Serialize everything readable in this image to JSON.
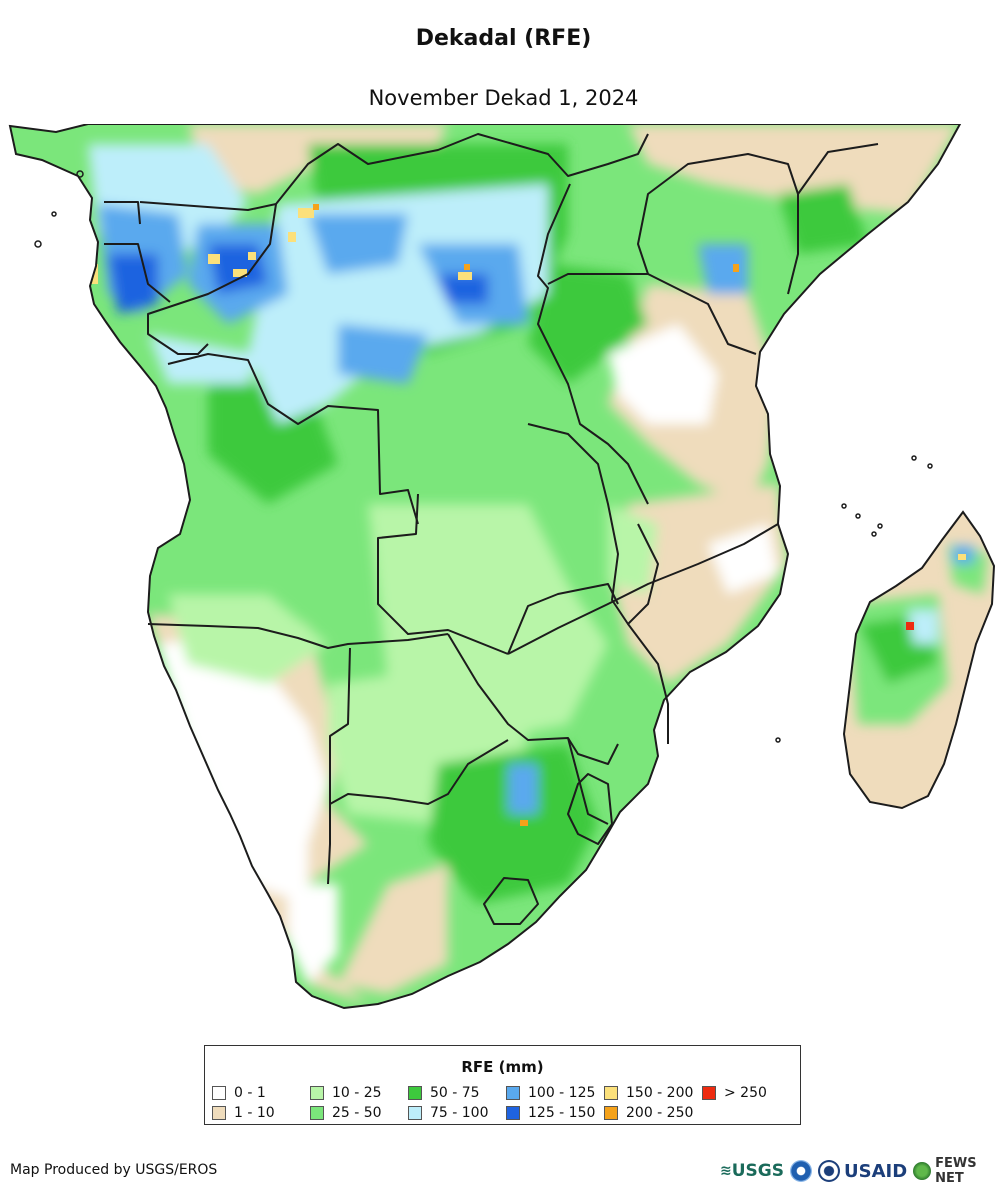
{
  "header": {
    "title": "Dekadal (RFE)",
    "subtitle": "November Dekad 1, 2024"
  },
  "map": {
    "ocean_color": "#ffffff",
    "border_color": "#1c1c1c"
  },
  "legend": {
    "title": "RFE (mm)",
    "classes": [
      {
        "label": "0 - 1",
        "color": "#ffffff"
      },
      {
        "label": "1 - 10",
        "color": "#efdcbc"
      },
      {
        "label": "10 - 25",
        "color": "#b8f5a8"
      },
      {
        "label": "25 - 50",
        "color": "#7be67b"
      },
      {
        "label": "50 - 75",
        "color": "#3dc93d"
      },
      {
        "label": "75 - 100",
        "color": "#bdeefa"
      },
      {
        "label": "100 - 125",
        "color": "#5aa9ee"
      },
      {
        "label": "125 - 150",
        "color": "#1f63e0"
      },
      {
        "label": "150 - 200",
        "color": "#fbe07b"
      },
      {
        "label": "200 - 250",
        "color": "#f5a21a"
      },
      {
        "label": "> 250",
        "color": "#ee2b10"
      }
    ]
  },
  "footer": {
    "credit": "Map Produced by USGS/EROS",
    "logo_usgs": "USGS",
    "logo_usaid": "USAID",
    "logo_fews": "FEWS NET"
  }
}
